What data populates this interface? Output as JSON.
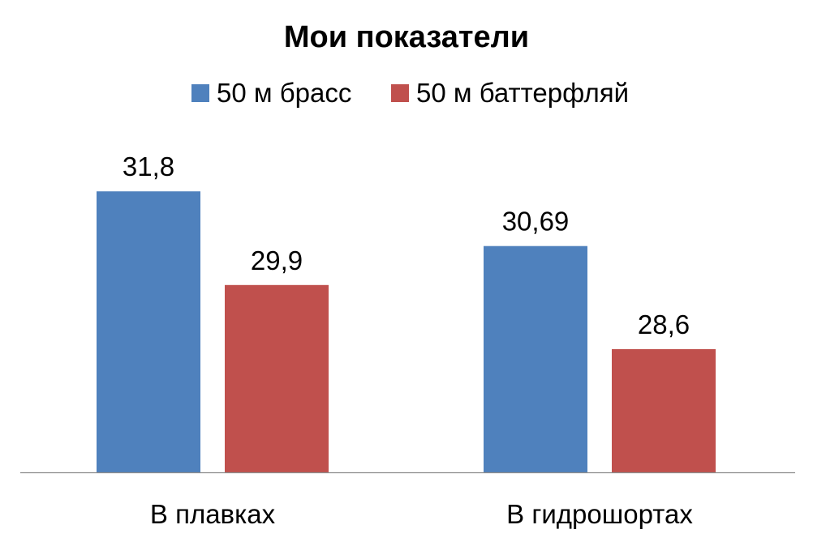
{
  "chart_data": {
    "type": "bar",
    "title": "Мои показатели",
    "categories": [
      "В плавках",
      "В гидрошортах"
    ],
    "series": [
      {
        "name": "50 м брасс",
        "color": "#4f81bd",
        "values": [
          31.8,
          30.69
        ],
        "labels": [
          "31,8",
          "30,69"
        ]
      },
      {
        "name": "50 м баттерфляй",
        "color": "#c0504d",
        "values": [
          29.9,
          28.6
        ],
        "labels": [
          "29,9",
          "28,6"
        ]
      }
    ],
    "ylim": [
      26.1,
      32.0
    ],
    "y_axis_visible": false,
    "grid": false,
    "legend": "top-center",
    "xlabel": "",
    "ylabel": ""
  }
}
